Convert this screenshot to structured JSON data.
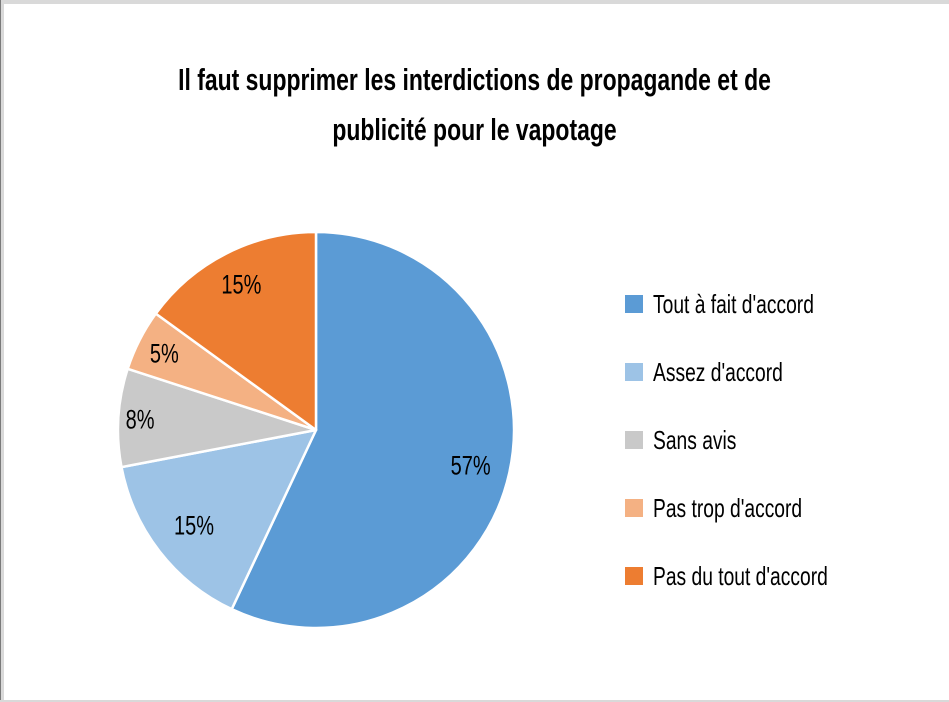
{
  "frame": {
    "background": "#ffffff",
    "edge_color": "#d9d9d9",
    "edge_left_dark": "#7a7a7a"
  },
  "chart_data": {
    "type": "pie",
    "title": "Il faut supprimer les interdictions de propagande et de publicité pour le vapotage",
    "title_lines": [
      "Il faut supprimer les interdictions de propagande et de",
      "publicité pour le vapotage"
    ],
    "categories": [
      "Tout à fait d'accord",
      "Assez d'accord",
      "Sans avis",
      "Pas trop d'accord",
      "Pas du tout d'accord"
    ],
    "values": [
      57,
      15,
      8,
      5,
      15
    ],
    "slices": [
      {
        "label": "Tout à fait d'accord",
        "value": 57,
        "data_label": "57%",
        "color": "#5B9BD5"
      },
      {
        "label": "Assez d'accord",
        "value": 15,
        "data_label": "15%",
        "color": "#9DC3E6"
      },
      {
        "label": "Sans avis",
        "value": 8,
        "data_label": "8%",
        "color": "#C9C9C9"
      },
      {
        "label": "Pas trop d'accord",
        "value": 5,
        "data_label": "5%",
        "color": "#F4B183"
      },
      {
        "label": "Pas du tout d'accord",
        "value": 15,
        "data_label": "15%",
        "color": "#ED7D31"
      }
    ],
    "start_angle_deg_from_top": 0,
    "direction": "clockwise",
    "slice_border_color": "#ffffff",
    "data_label_color": "#000000",
    "title_color": "#000000",
    "legend_position": "right",
    "label_radius_fractions": [
      0.8,
      0.78,
      0.89,
      0.86,
      0.83
    ]
  }
}
